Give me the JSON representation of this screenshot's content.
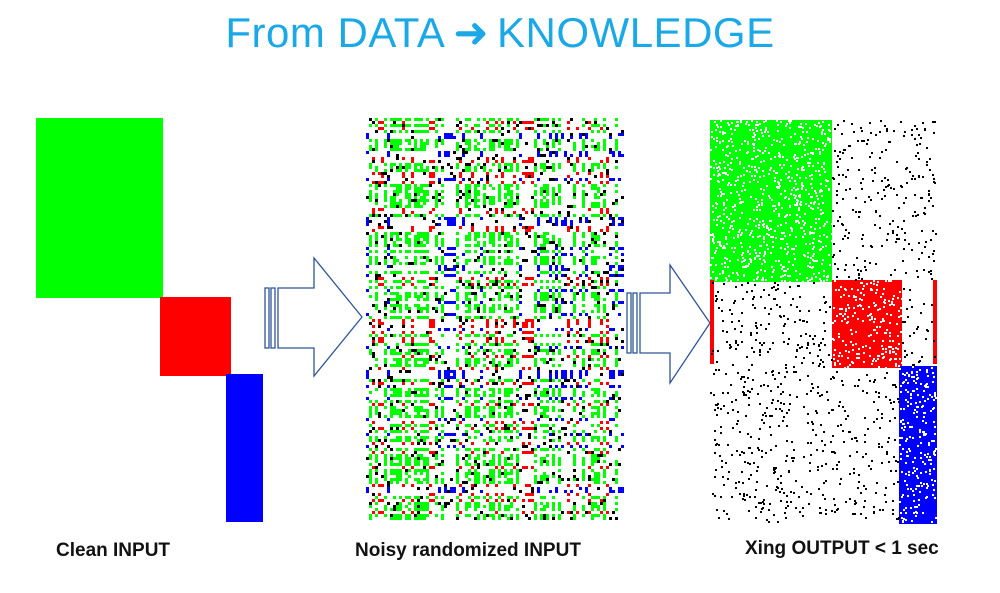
{
  "title": {
    "left": "From DATA",
    "arrow_glyph": "➜",
    "right": "KNOWLEDGE"
  },
  "panels": [
    {
      "id": "clean",
      "caption": "Clean INPUT"
    },
    {
      "id": "noisy",
      "caption": "Noisy randomized INPUT"
    },
    {
      "id": "output",
      "caption": "Xing OUTPUT < 1 sec"
    }
  ],
  "colors": {
    "title": "#1ba8e6",
    "green": "#00ff00",
    "red": "#ff0000",
    "blue": "#0000ff",
    "black": "#000000",
    "arrow_stroke": "#2f5597"
  }
}
